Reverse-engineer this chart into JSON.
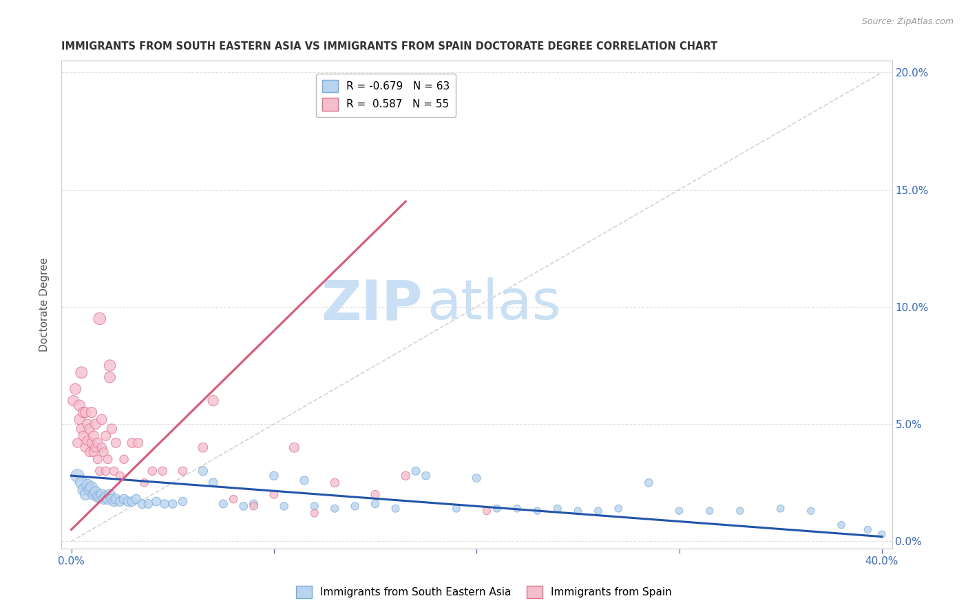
{
  "title": "IMMIGRANTS FROM SOUTH EASTERN ASIA VS IMMIGRANTS FROM SPAIN DOCTORATE DEGREE CORRELATION CHART",
  "source": "Source: ZipAtlas.com",
  "ylabel": "Doctorate Degree",
  "right_ytick_labels": [
    "0.0%",
    "5.0%",
    "10.0%",
    "15.0%",
    "20.0%"
  ],
  "right_ytick_values": [
    0.0,
    0.05,
    0.1,
    0.15,
    0.2
  ],
  "xtick_major_vals": [
    0.0,
    0.1,
    0.2,
    0.3,
    0.4
  ],
  "xtick_major_labels": [
    "0.0%",
    "",
    "",
    "",
    "40.0%"
  ],
  "xlim": [
    -0.005,
    0.405
  ],
  "ylim": [
    -0.003,
    0.205
  ],
  "series_blue": {
    "name": "Immigrants from South Eastern Asia",
    "color": "#b8d4ee",
    "edge_color": "#7aaadd",
    "trend_color": "#2255aa",
    "trend_start_x": 0.0,
    "trend_start_y": 0.028,
    "trend_end_x": 0.4,
    "trend_end_y": 0.002
  },
  "series_pink": {
    "name": "Immigrants from Spain",
    "color": "#f5bece",
    "edge_color": "#e07090",
    "trend_color": "#e05575",
    "trend_start_x": 0.0,
    "trend_start_y": 0.005,
    "trend_end_x": 0.165,
    "trend_end_y": 0.145
  },
  "diagonal_line_color": "#c8c8c8",
  "watermark_zip": "ZIP",
  "watermark_atlas": "atlas",
  "watermark_color_zip": "#c8dff5",
  "watermark_color_atlas": "#c8dff5",
  "background_color": "#ffffff",
  "grid_color": "#e0e0e0",
  "legend_blue_label": "R = -0.679   N = 63",
  "legend_pink_label": "R =  0.587   N = 55",
  "legend_blue_color": "#b8d4ee",
  "legend_pink_color": "#f5bece",
  "legend_blue_edge": "#7aaadd",
  "legend_pink_edge": "#e07090",
  "blue_points": [
    [
      0.003,
      0.028
    ],
    [
      0.005,
      0.025
    ],
    [
      0.006,
      0.022
    ],
    [
      0.007,
      0.02
    ],
    [
      0.008,
      0.024
    ],
    [
      0.009,
      0.022
    ],
    [
      0.01,
      0.023
    ],
    [
      0.011,
      0.02
    ],
    [
      0.012,
      0.021
    ],
    [
      0.013,
      0.019
    ],
    [
      0.014,
      0.019
    ],
    [
      0.015,
      0.02
    ],
    [
      0.016,
      0.018
    ],
    [
      0.017,
      0.019
    ],
    [
      0.018,
      0.018
    ],
    [
      0.019,
      0.02
    ],
    [
      0.02,
      0.018
    ],
    [
      0.021,
      0.017
    ],
    [
      0.022,
      0.018
    ],
    [
      0.024,
      0.017
    ],
    [
      0.026,
      0.018
    ],
    [
      0.028,
      0.017
    ],
    [
      0.03,
      0.017
    ],
    [
      0.032,
      0.018
    ],
    [
      0.035,
      0.016
    ],
    [
      0.038,
      0.016
    ],
    [
      0.042,
      0.017
    ],
    [
      0.046,
      0.016
    ],
    [
      0.05,
      0.016
    ],
    [
      0.055,
      0.017
    ],
    [
      0.065,
      0.03
    ],
    [
      0.07,
      0.025
    ],
    [
      0.075,
      0.016
    ],
    [
      0.085,
      0.015
    ],
    [
      0.09,
      0.016
    ],
    [
      0.1,
      0.028
    ],
    [
      0.105,
      0.015
    ],
    [
      0.115,
      0.026
    ],
    [
      0.12,
      0.015
    ],
    [
      0.13,
      0.014
    ],
    [
      0.14,
      0.015
    ],
    [
      0.15,
      0.016
    ],
    [
      0.16,
      0.014
    ],
    [
      0.17,
      0.03
    ],
    [
      0.175,
      0.028
    ],
    [
      0.19,
      0.014
    ],
    [
      0.2,
      0.027
    ],
    [
      0.21,
      0.014
    ],
    [
      0.22,
      0.014
    ],
    [
      0.23,
      0.013
    ],
    [
      0.24,
      0.014
    ],
    [
      0.25,
      0.013
    ],
    [
      0.26,
      0.013
    ],
    [
      0.27,
      0.014
    ],
    [
      0.285,
      0.025
    ],
    [
      0.3,
      0.013
    ],
    [
      0.315,
      0.013
    ],
    [
      0.33,
      0.013
    ],
    [
      0.35,
      0.014
    ],
    [
      0.365,
      0.013
    ],
    [
      0.38,
      0.007
    ],
    [
      0.393,
      0.005
    ],
    [
      0.4,
      0.003
    ]
  ],
  "pink_points": [
    [
      0.001,
      0.06
    ],
    [
      0.002,
      0.065
    ],
    [
      0.003,
      0.042
    ],
    [
      0.004,
      0.058
    ],
    [
      0.004,
      0.052
    ],
    [
      0.005,
      0.072
    ],
    [
      0.005,
      0.048
    ],
    [
      0.006,
      0.055
    ],
    [
      0.006,
      0.045
    ],
    [
      0.007,
      0.04
    ],
    [
      0.007,
      0.055
    ],
    [
      0.008,
      0.05
    ],
    [
      0.008,
      0.043
    ],
    [
      0.009,
      0.038
    ],
    [
      0.009,
      0.048
    ],
    [
      0.01,
      0.055
    ],
    [
      0.01,
      0.042
    ],
    [
      0.011,
      0.045
    ],
    [
      0.011,
      0.038
    ],
    [
      0.012,
      0.05
    ],
    [
      0.012,
      0.04
    ],
    [
      0.013,
      0.042
    ],
    [
      0.013,
      0.035
    ],
    [
      0.014,
      0.03
    ],
    [
      0.014,
      0.095
    ],
    [
      0.015,
      0.04
    ],
    [
      0.015,
      0.052
    ],
    [
      0.016,
      0.038
    ],
    [
      0.017,
      0.045
    ],
    [
      0.017,
      0.03
    ],
    [
      0.018,
      0.035
    ],
    [
      0.019,
      0.075
    ],
    [
      0.019,
      0.07
    ],
    [
      0.02,
      0.048
    ],
    [
      0.021,
      0.03
    ],
    [
      0.022,
      0.042
    ],
    [
      0.024,
      0.028
    ],
    [
      0.026,
      0.035
    ],
    [
      0.03,
      0.042
    ],
    [
      0.033,
      0.042
    ],
    [
      0.036,
      0.025
    ],
    [
      0.04,
      0.03
    ],
    [
      0.045,
      0.03
    ],
    [
      0.055,
      0.03
    ],
    [
      0.065,
      0.04
    ],
    [
      0.07,
      0.06
    ],
    [
      0.08,
      0.018
    ],
    [
      0.09,
      0.015
    ],
    [
      0.1,
      0.02
    ],
    [
      0.11,
      0.04
    ],
    [
      0.12,
      0.012
    ],
    [
      0.13,
      0.025
    ],
    [
      0.15,
      0.02
    ],
    [
      0.165,
      0.028
    ],
    [
      0.205,
      0.013
    ]
  ],
  "blue_sizes": [
    180,
    160,
    140,
    130,
    150,
    140,
    145,
    130,
    135,
    125,
    120,
    125,
    115,
    120,
    115,
    120,
    110,
    105,
    110,
    100,
    100,
    95,
    95,
    95,
    90,
    85,
    85,
    80,
    80,
    80,
    90,
    85,
    75,
    70,
    72,
    80,
    68,
    78,
    65,
    62,
    65,
    68,
    62,
    75,
    72,
    60,
    72,
    58,
    58,
    55,
    58,
    55,
    55,
    58,
    68,
    55,
    55,
    55,
    58,
    55,
    55,
    55,
    55
  ],
  "pink_sizes": [
    120,
    130,
    95,
    130,
    115,
    145,
    110,
    120,
    105,
    100,
    115,
    110,
    100,
    90,
    105,
    120,
    100,
    110,
    92,
    115,
    100,
    105,
    88,
    80,
    160,
    95,
    110,
    88,
    100,
    80,
    85,
    140,
    130,
    105,
    80,
    100,
    72,
    80,
    100,
    100,
    68,
    80,
    80,
    80,
    95,
    120,
    68,
    65,
    72,
    100,
    62,
    80,
    72,
    80,
    62
  ]
}
